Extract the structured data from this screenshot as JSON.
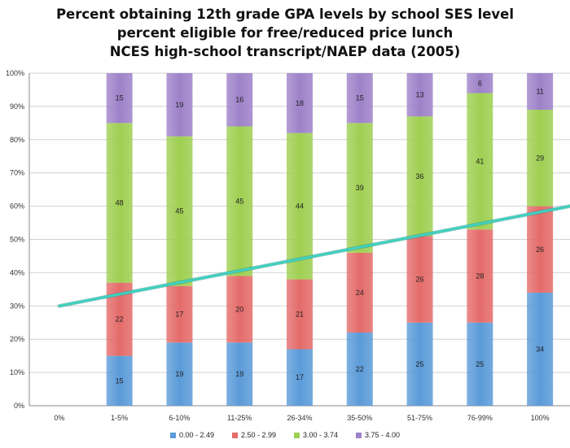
{
  "title": {
    "line1": "Percent obtaining 12th grade GPA levels by school SES level",
    "line2": "percent eligible for free/reduced price lunch",
    "line3": "NCES high-school transcript/NAEP data (2005)"
  },
  "chart_data": {
    "type": "bar",
    "stacked": true,
    "categories": [
      "0%",
      "1-5%",
      "6-10%",
      "11-25%",
      "26-34%",
      "35-50%",
      "51-75%",
      "76-99%",
      "100%"
    ],
    "series": [
      {
        "name": "0.00 - 2.49",
        "color": "#5b9bd9",
        "values": [
          null,
          15,
          19,
          19,
          17,
          22,
          25,
          25,
          34
        ]
      },
      {
        "name": "2.50 - 2.99",
        "color": "#e46c6a",
        "values": [
          null,
          22,
          17,
          20,
          21,
          24,
          26,
          28,
          26
        ]
      },
      {
        "name": "3.00 - 3.74",
        "color": "#9fcf52",
        "values": [
          null,
          48,
          45,
          45,
          44,
          39,
          36,
          41,
          29
        ]
      },
      {
        "name": "3.75 - 4.00",
        "color": "#9e82c9",
        "values": [
          null,
          15,
          19,
          16,
          18,
          15,
          13,
          6,
          11
        ]
      }
    ],
    "ylim": [
      0,
      100
    ],
    "yticks": [
      "0%",
      "10%",
      "20%",
      "30%",
      "40%",
      "50%",
      "60%",
      "70%",
      "80%",
      "90%",
      "100%"
    ],
    "trendline": {
      "color": "#3fd1bf",
      "from": {
        "x": 0.5,
        "y": 30
      },
      "to": {
        "x": 9.0,
        "y": 60
      }
    },
    "legend_position": "bottom",
    "grid": true
  }
}
